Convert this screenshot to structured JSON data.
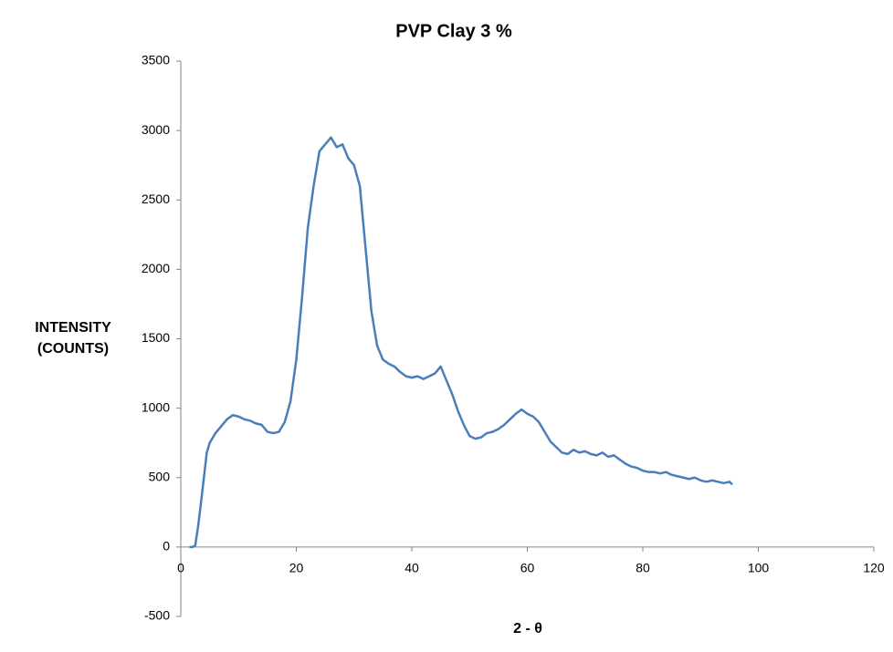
{
  "chart_data": {
    "type": "line",
    "title": "PVP Clay 3 %",
    "ylabel_lines": [
      "INTENSITY",
      "(COUNTS)"
    ],
    "xlabel": "2 - θ",
    "x": [
      1.5,
      2,
      2.5,
      3,
      3.5,
      4,
      4.5,
      5,
      6,
      7,
      8,
      9,
      10,
      11,
      12,
      13,
      14,
      15,
      16,
      17,
      18,
      19,
      20,
      21,
      22,
      23,
      24,
      25,
      26,
      27,
      28,
      29,
      30,
      31,
      32,
      33,
      34,
      35,
      36,
      37,
      38,
      39,
      40,
      41,
      42,
      43,
      44,
      45,
      46,
      47,
      48,
      49,
      50,
      51,
      52,
      53,
      54,
      55,
      56,
      57,
      58,
      59,
      60,
      61,
      62,
      63,
      64,
      65,
      66,
      67,
      68,
      69,
      70,
      71,
      72,
      73,
      74,
      75,
      76,
      77,
      78,
      79,
      80,
      81,
      82,
      83,
      84,
      85,
      86,
      87,
      88,
      89,
      90,
      91,
      92,
      93,
      94,
      95,
      95.5
    ],
    "series": [
      {
        "name": "PVP Clay 3 %",
        "color": "#4a7ebb",
        "values": [
          0,
          0,
          10,
          150,
          320,
          500,
          680,
          750,
          820,
          870,
          920,
          950,
          940,
          920,
          910,
          890,
          880,
          830,
          820,
          830,
          900,
          1050,
          1350,
          1800,
          2300,
          2600,
          2850,
          2900,
          2950,
          2880,
          2900,
          2800,
          2750,
          2600,
          2150,
          1700,
          1450,
          1350,
          1320,
          1300,
          1260,
          1230,
          1220,
          1230,
          1210,
          1230,
          1250,
          1300,
          1200,
          1100,
          980,
          880,
          800,
          780,
          790,
          820,
          830,
          850,
          880,
          920,
          960,
          990,
          960,
          940,
          900,
          830,
          760,
          720,
          680,
          670,
          700,
          680,
          690,
          670,
          660,
          680,
          650,
          660,
          630,
          600,
          580,
          570,
          550,
          540,
          540,
          530,
          540,
          520,
          510,
          500,
          490,
          500,
          480,
          470,
          480,
          470,
          460,
          470,
          450
        ]
      }
    ],
    "xlim": [
      0,
      120
    ],
    "xticks": [
      0,
      20,
      40,
      60,
      80,
      100,
      120
    ],
    "ylim": [
      -500,
      3500
    ],
    "yticks": [
      -500,
      0,
      500,
      1000,
      1500,
      2000,
      2500,
      3000,
      3500
    ]
  }
}
